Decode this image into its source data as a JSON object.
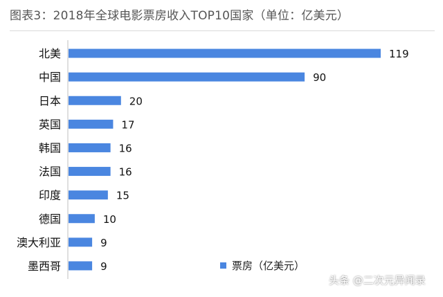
{
  "title": "图表3：2018年全球电影票房收入TOP10国家（单位：亿美元）",
  "watermark": "头条 @二次元异闻录",
  "colors": {
    "bar": "#4a86e0",
    "axis": "#bfbfbf"
  },
  "chart_data": {
    "type": "bar",
    "orientation": "horizontal",
    "categories": [
      "北美",
      "中国",
      "日本",
      "英国",
      "韩国",
      "法国",
      "印度",
      "德国",
      "澳大利亚",
      "墨西哥"
    ],
    "values": [
      119,
      90,
      20,
      17,
      16,
      16,
      15,
      10,
      9,
      9
    ],
    "series": [
      {
        "name": "票房（亿美元）",
        "values": [
          119,
          90,
          20,
          17,
          16,
          16,
          15,
          10,
          9,
          9
        ]
      }
    ],
    "xlim": [
      0,
      119
    ],
    "legend": "bottom-right",
    "grid": false
  }
}
